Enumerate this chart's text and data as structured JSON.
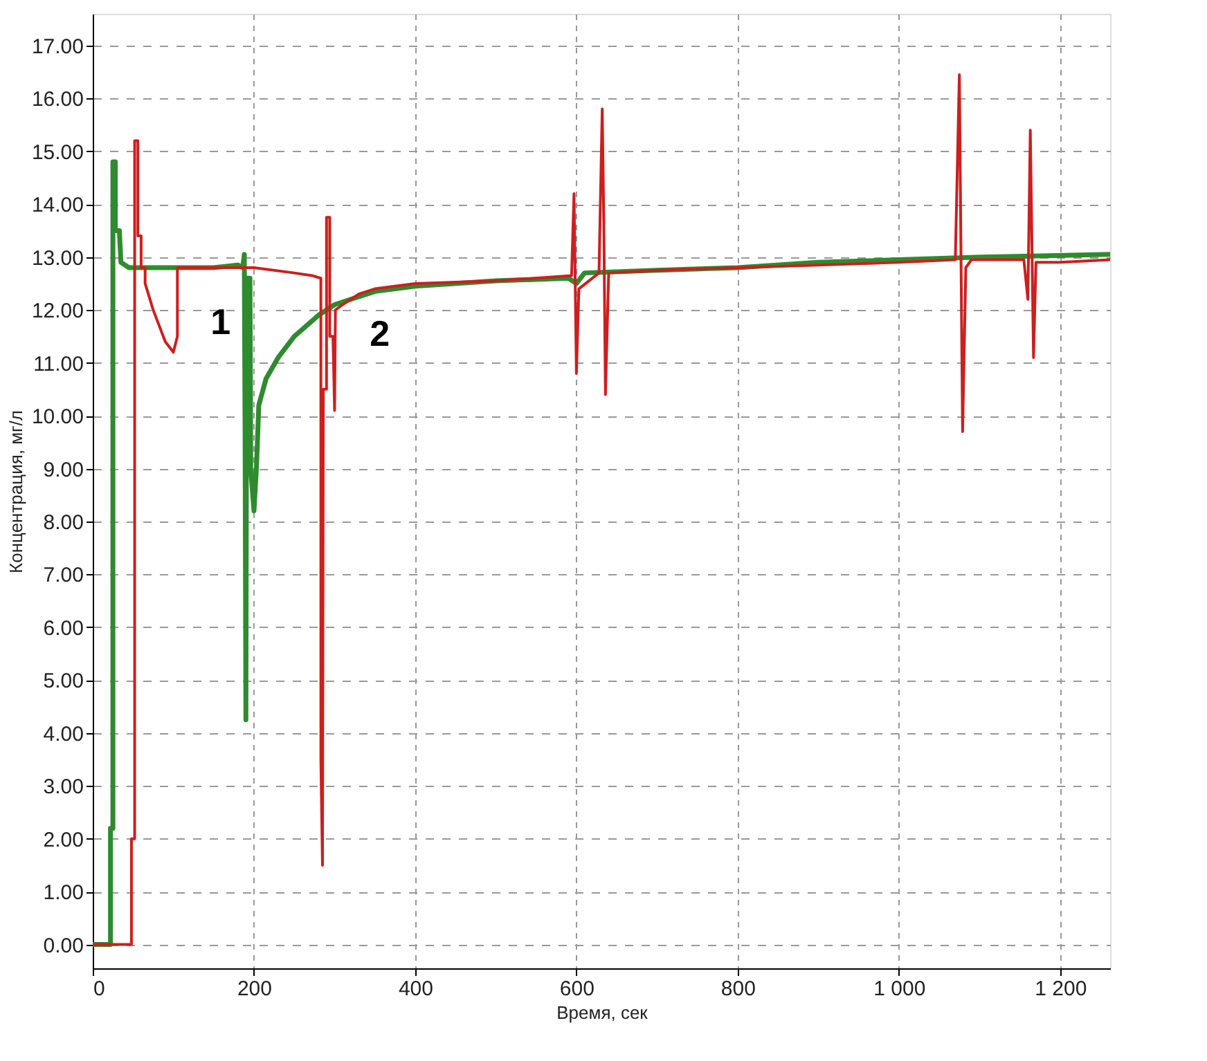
{
  "chart_data": {
    "type": "line",
    "xlabel": "Время, сек",
    "ylabel": "Концентрация, мг/л",
    "xlim": [
      0,
      1262
    ],
    "ylim": [
      -0.45,
      17.6
    ],
    "xticks": [
      0,
      200,
      400,
      600,
      800,
      {
        "value": 1000,
        "label": "1 000"
      },
      {
        "value": 1200,
        "label": "1 200"
      }
    ],
    "yticks": [
      {
        "value": 0,
        "label": "0.00"
      },
      {
        "value": 1,
        "label": "1.00"
      },
      {
        "value": 2,
        "label": "2.00"
      },
      {
        "value": 3,
        "label": "3.00"
      },
      {
        "value": 4,
        "label": "4.00"
      },
      {
        "value": 5,
        "label": "5.00"
      },
      {
        "value": 6,
        "label": "6.00"
      },
      {
        "value": 7,
        "label": "7.00"
      },
      {
        "value": 8,
        "label": "8.00"
      },
      {
        "value": 9,
        "label": "9.00"
      },
      {
        "value": 10,
        "label": "10.00"
      },
      {
        "value": 11,
        "label": "11.00"
      },
      {
        "value": 12,
        "label": "12.00"
      },
      {
        "value": 13,
        "label": "13.00"
      },
      {
        "value": 14,
        "label": "14.00"
      },
      {
        "value": 15,
        "label": "15.00"
      },
      {
        "value": 16,
        "label": "16.00"
      },
      {
        "value": 17,
        "label": "17.00"
      }
    ],
    "grid": true,
    "marker": "none",
    "line_style": "solid",
    "series": [
      {
        "name": "1",
        "color": "#2e8b2e",
        "x": [
          0,
          22,
          22,
          25,
          25,
          28,
          28,
          33,
          35,
          45,
          100,
          150,
          180,
          186,
          188,
          189,
          190,
          191,
          195,
          196,
          200,
          203,
          206,
          215,
          230,
          250,
          280,
          300,
          350,
          400,
          500,
          590,
          600,
          610,
          700,
          800,
          900,
          1000,
          1100,
          1262
        ],
        "values": [
          0,
          0,
          2.2,
          2.2,
          14.8,
          14.8,
          13.5,
          13.5,
          12.9,
          12.8,
          12.8,
          12.8,
          12.85,
          12.8,
          13.05,
          9.6,
          4.25,
          12.6,
          12.6,
          9.0,
          8.2,
          9.0,
          10.2,
          10.7,
          11.1,
          11.5,
          11.9,
          12.1,
          12.35,
          12.45,
          12.55,
          12.6,
          12.5,
          12.7,
          12.75,
          12.8,
          12.9,
          12.95,
          13.0,
          13.05
        ]
      },
      {
        "name": "2",
        "color": "#cc1f1f",
        "x": [
          0,
          48,
          48,
          52,
          52,
          56,
          56,
          60,
          60,
          65,
          65,
          75,
          90,
          100,
          105,
          105,
          150,
          200,
          250,
          272,
          283,
          283,
          285,
          286,
          290,
          290,
          294,
          294,
          298,
          300,
          301,
          310,
          330,
          350,
          400,
          500,
          594,
          597,
          600,
          603,
          628,
          632,
          634,
          636,
          640,
          700,
          800,
          900,
          1000,
          1070,
          1075,
          1079,
          1083,
          1090,
          1155,
          1160,
          1163,
          1167,
          1170,
          1200,
          1262
        ],
        "values": [
          0,
          0,
          2.0,
          2.0,
          15.2,
          15.2,
          13.4,
          13.4,
          12.8,
          12.8,
          12.5,
          12.0,
          11.4,
          11.2,
          11.5,
          12.8,
          12.8,
          12.8,
          12.7,
          12.65,
          12.6,
          3.5,
          1.5,
          10.5,
          10.5,
          13.75,
          13.75,
          11.5,
          11.5,
          10.1,
          12.0,
          12.1,
          12.3,
          12.4,
          12.5,
          12.55,
          12.65,
          14.2,
          10.8,
          12.4,
          12.7,
          15.8,
          13.6,
          10.4,
          12.7,
          12.75,
          12.8,
          12.85,
          12.9,
          12.95,
          16.45,
          9.7,
          12.8,
          12.95,
          12.95,
          12.2,
          15.4,
          11.1,
          12.9,
          12.9,
          12.95
        ]
      }
    ]
  }
}
